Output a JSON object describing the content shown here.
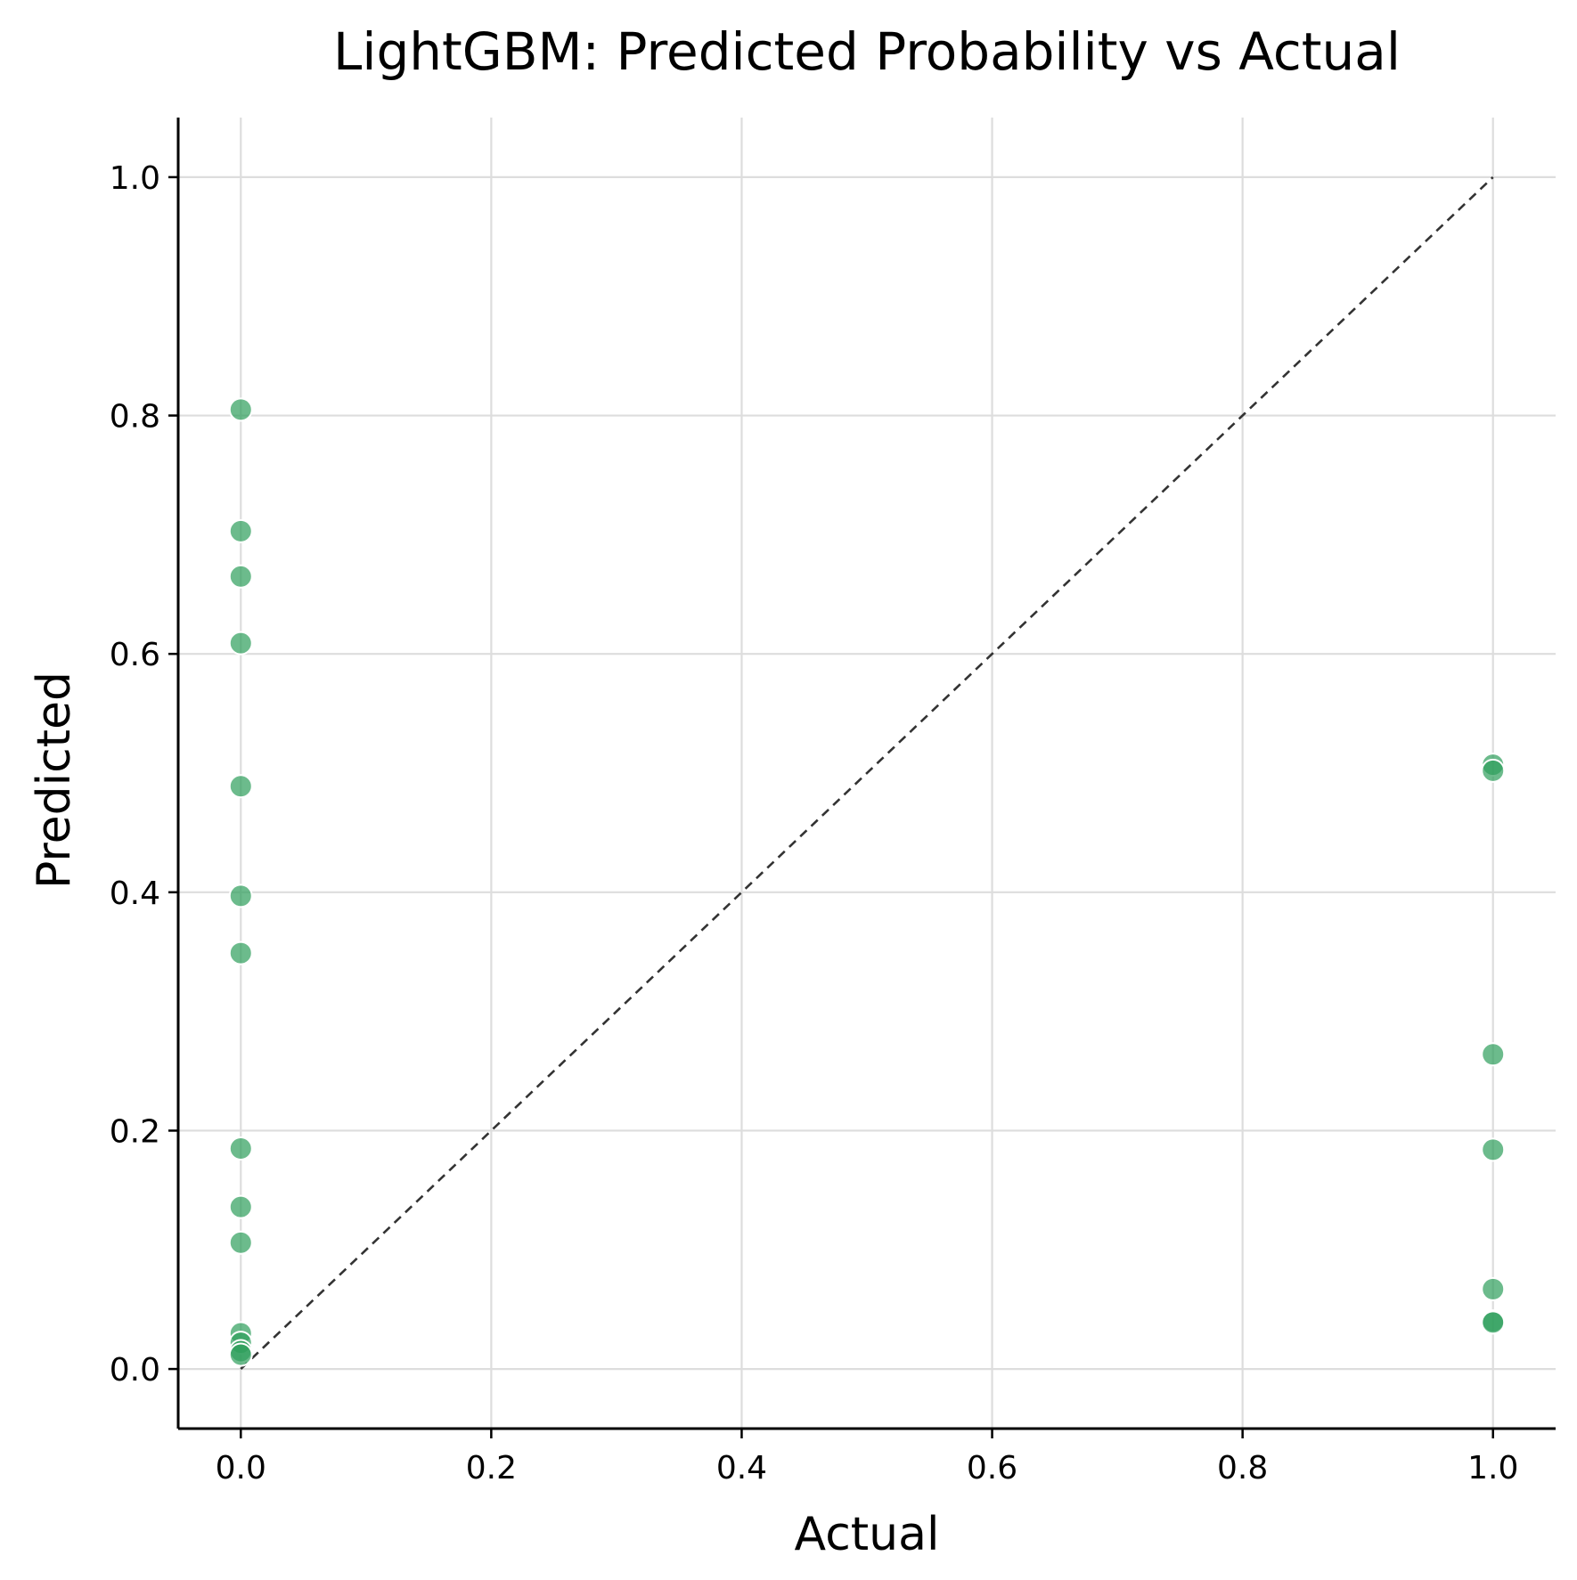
{
  "chart_data": {
    "type": "scatter",
    "title": "LightGBM: Predicted Probability vs Actual",
    "xlabel": "Actual",
    "ylabel": "Predicted",
    "xlim": [
      -0.05,
      1.05
    ],
    "ylim": [
      -0.05,
      1.05
    ],
    "xticks": [
      "0.0",
      "0.2",
      "0.4",
      "0.6",
      "0.8",
      "1.0"
    ],
    "yticks": [
      "0.0",
      "0.2",
      "0.4",
      "0.6",
      "0.8",
      "1.0"
    ],
    "grid": true,
    "point_color": "#2e9e5b",
    "reference_line": {
      "x": [
        0,
        1
      ],
      "y": [
        0,
        1
      ],
      "style": "dashed",
      "color": "#333333"
    },
    "series": [
      {
        "points": [
          {
            "x": 0,
            "y": 0.805
          },
          {
            "x": 0,
            "y": 0.703
          },
          {
            "x": 0,
            "y": 0.665
          },
          {
            "x": 0,
            "y": 0.609
          },
          {
            "x": 0,
            "y": 0.489
          },
          {
            "x": 0,
            "y": 0.397
          },
          {
            "x": 0,
            "y": 0.349
          },
          {
            "x": 0,
            "y": 0.185
          },
          {
            "x": 0,
            "y": 0.136
          },
          {
            "x": 0,
            "y": 0.106
          },
          {
            "x": 0,
            "y": 0.03
          },
          {
            "x": 0,
            "y": 0.022
          },
          {
            "x": 0,
            "y": 0.015
          },
          {
            "x": 0,
            "y": 0.012
          },
          {
            "x": 1,
            "y": 0.507
          },
          {
            "x": 1,
            "y": 0.502
          },
          {
            "x": 1,
            "y": 0.264
          },
          {
            "x": 1,
            "y": 0.184
          },
          {
            "x": 1,
            "y": 0.067
          },
          {
            "x": 1,
            "y": 0.04
          },
          {
            "x": 1,
            "y": 0.039
          }
        ]
      }
    ]
  }
}
